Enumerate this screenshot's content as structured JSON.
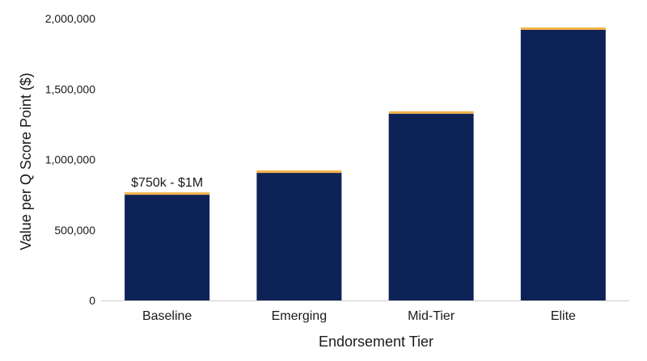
{
  "chart_data": {
    "type": "bar",
    "title": "",
    "xlabel": "Endorsement Tier",
    "ylabel": "Value per Q Score Point ($)",
    "categories": [
      "Baseline",
      "Emerging",
      "Mid-Tier",
      "Elite"
    ],
    "values": [
      750000,
      905000,
      1325000,
      1920000
    ],
    "ylim": [
      0,
      2000000
    ],
    "yticks": [
      0,
      500000,
      1000000,
      1500000,
      2000000
    ],
    "ytick_labels": [
      "0",
      "500,000",
      "1,000,000",
      "1,500,000",
      "2,000,000"
    ],
    "annotations": [
      {
        "category": "Baseline",
        "text": "$750k - $1M"
      }
    ],
    "grid": false,
    "legend": "none",
    "colors": {
      "bar": "#0d2256",
      "bar_cap": "#f2b34a",
      "axis": "#cccccc"
    }
  }
}
